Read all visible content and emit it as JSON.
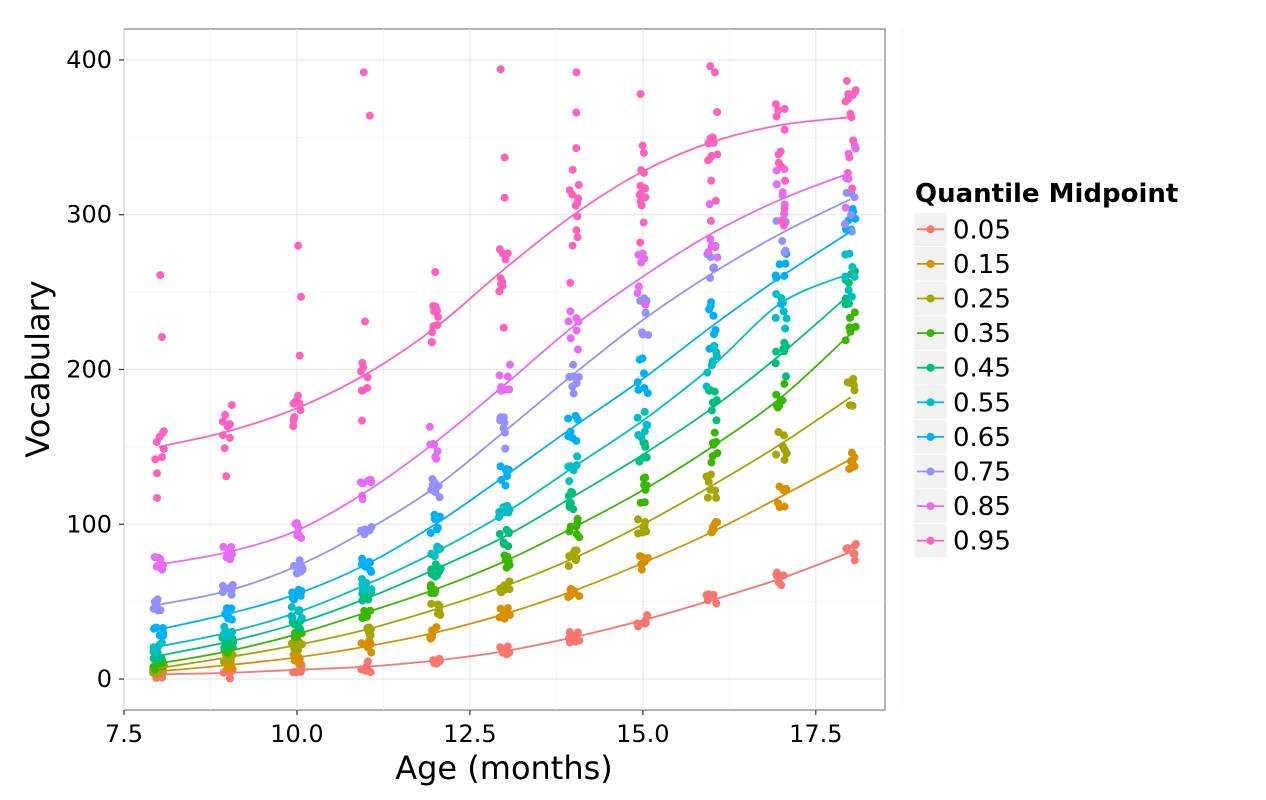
{
  "chart_data": {
    "type": "scatter",
    "xlabel": "Age (months)",
    "ylabel": "Vocabulary",
    "xlim": [
      7.5,
      18.5
    ],
    "ylim": [
      -20,
      420
    ],
    "x_ticks": [
      7.5,
      10.0,
      12.5,
      15.0,
      17.5
    ],
    "x_tick_labels": [
      "7.5",
      "10.0",
      "12.5",
      "15.0",
      "17.5"
    ],
    "y_ticks": [
      0,
      100,
      200,
      300,
      400
    ],
    "y_tick_labels": [
      "0",
      "100",
      "200",
      "300",
      "400"
    ],
    "grid": true,
    "legend": {
      "title": "Quantile Midpoint",
      "position": "right",
      "entries": [
        "0.05",
        "0.15",
        "0.25",
        "0.35",
        "0.45",
        "0.55",
        "0.65",
        "0.75",
        "0.85",
        "0.95"
      ]
    },
    "ages": [
      8,
      9,
      10,
      11,
      12,
      13,
      14,
      15,
      16,
      17,
      18
    ],
    "series": [
      {
        "name": "0.05",
        "color": "#F8766D",
        "curve": [
          3,
          4,
          6,
          8,
          12,
          18,
          27,
          38,
          51,
          65,
          82
        ]
      },
      {
        "name": "0.15",
        "color": "#D89000",
        "curve": [
          5,
          9,
          14,
          21,
          30,
          42,
          57,
          75,
          95,
          118,
          142
        ]
      },
      {
        "name": "0.25",
        "color": "#A3A500",
        "curve": [
          7,
          14,
          22,
          32,
          45,
          60,
          78,
          100,
          125,
          152,
          182
        ]
      },
      {
        "name": "0.35",
        "color": "#39B600",
        "curve": [
          10,
          18,
          29,
          43,
          58,
          76,
          98,
          122,
          150,
          182,
          223
        ]
      },
      {
        "name": "0.45",
        "color": "#00BF7D",
        "curve": [
          15,
          24,
          36,
          52,
          71,
          92,
          118,
          145,
          175,
          210,
          249
        ]
      },
      {
        "name": "0.55",
        "color": "#00BFC4",
        "curve": [
          21,
          30,
          43,
          61,
          82,
          107,
          137,
          167,
          202,
          243,
          262
        ]
      },
      {
        "name": "0.65",
        "color": "#00B0F6",
        "curve": [
          32,
          42,
          55,
          74,
          100,
          131,
          163,
          194,
          228,
          260,
          289
        ]
      },
      {
        "name": "0.75",
        "color": "#9590FF",
        "curve": [
          48,
          57,
          73,
          96,
          124,
          160,
          197,
          232,
          262,
          288,
          310
        ]
      },
      {
        "name": "0.85",
        "color": "#E76BF3",
        "curve": [
          74,
          82,
          96,
          121,
          153,
          190,
          228,
          260,
          288,
          310,
          327
        ]
      },
      {
        "name": "0.95",
        "color": "#FF62BC",
        "curve": [
          150,
          160,
          175,
          197,
          227,
          265,
          300,
          328,
          347,
          358,
          363
        ]
      }
    ],
    "outliers": {
      "color": "#FF62BC",
      "points": [
        [
          8,
          261
        ],
        [
          8,
          221
        ],
        [
          8,
          133
        ],
        [
          8,
          117
        ],
        [
          9,
          177
        ],
        [
          9,
          131
        ],
        [
          10,
          280
        ],
        [
          10,
          247
        ],
        [
          10,
          209
        ],
        [
          10,
          183
        ],
        [
          10,
          178
        ],
        [
          11,
          392
        ],
        [
          11,
          364
        ],
        [
          11,
          231
        ],
        [
          11,
          167
        ],
        [
          12,
          263
        ],
        [
          12,
          241
        ],
        [
          12,
          238
        ],
        [
          12,
          228
        ],
        [
          13,
          394
        ],
        [
          13,
          337
        ],
        [
          13,
          311
        ],
        [
          13,
          275
        ],
        [
          13,
          259
        ],
        [
          13,
          227
        ],
        [
          14,
          392
        ],
        [
          14,
          366
        ],
        [
          14,
          343
        ],
        [
          14,
          329
        ],
        [
          14,
          313
        ],
        [
          14,
          290
        ],
        [
          14,
          280
        ],
        [
          14,
          256
        ],
        [
          15,
          378
        ],
        [
          15,
          340
        ],
        [
          15,
          327
        ],
        [
          15,
          317
        ],
        [
          15,
          306
        ],
        [
          15,
          295
        ],
        [
          15,
          282
        ],
        [
          16,
          396
        ],
        [
          16,
          392
        ],
        [
          16,
          350
        ],
        [
          16,
          338
        ],
        [
          16,
          322
        ],
        [
          16,
          309
        ],
        [
          16,
          296
        ],
        [
          17,
          339
        ],
        [
          17,
          331
        ],
        [
          17,
          322
        ],
        [
          17,
          304
        ],
        [
          17,
          296
        ],
        [
          17,
          293
        ],
        [
          18,
          378
        ],
        [
          18,
          363
        ],
        [
          18,
          348
        ],
        [
          18,
          337
        ],
        [
          18,
          327
        ],
        [
          18,
          317
        ]
      ]
    }
  }
}
